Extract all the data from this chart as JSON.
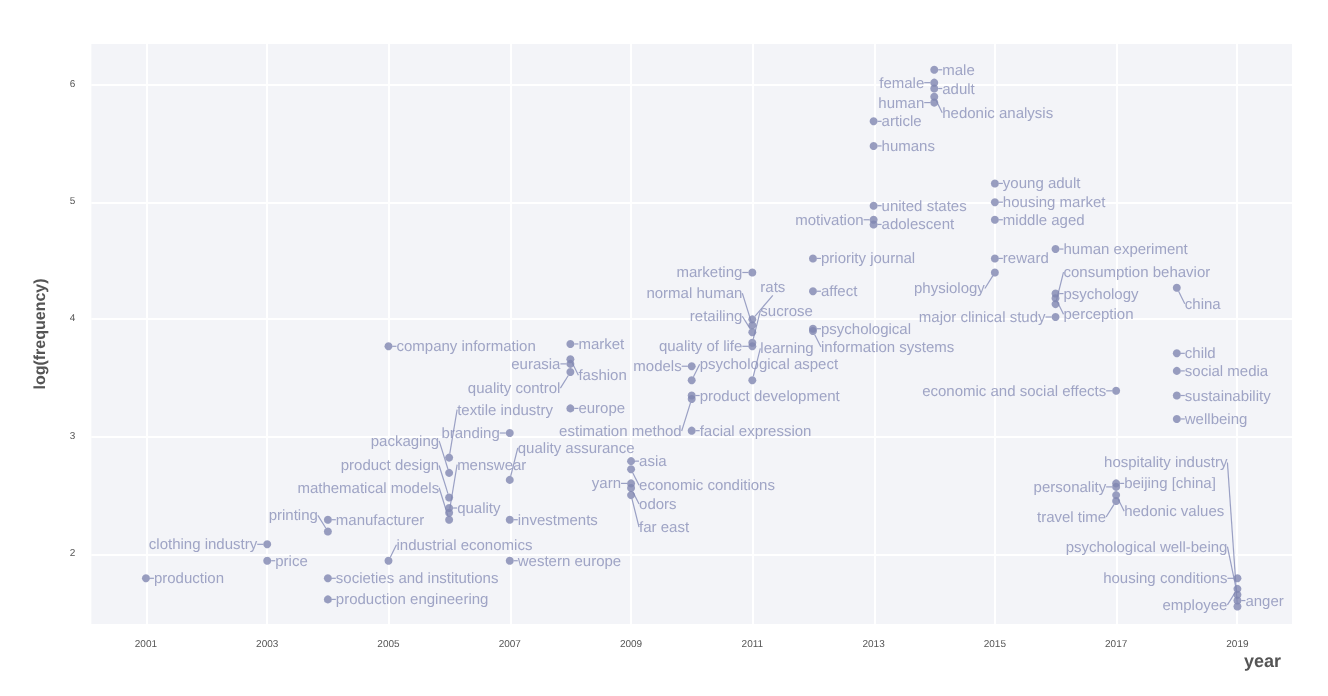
{
  "chart_data": {
    "type": "scatter",
    "xlabel": "year",
    "ylabel": "log(frequency)",
    "xlim": [
      2000.1,
      2019.9
    ],
    "ylim": [
      1.4,
      6.35
    ],
    "xticks": [
      2001,
      2003,
      2005,
      2007,
      2009,
      2011,
      2013,
      2015,
      2017,
      2019
    ],
    "yticks": [
      2,
      3,
      4,
      5,
      6
    ],
    "grid": true,
    "marker": "circle",
    "series": [
      {
        "color": "#7f86b0",
        "x": [
          2001,
          2003,
          2003,
          2004,
          2004,
          2004,
          2004,
          2005,
          2005,
          2006,
          2006,
          2006,
          2006,
          2006,
          2006,
          2007,
          2007,
          2007,
          2007,
          2008,
          2008,
          2008,
          2008,
          2008,
          2010,
          2010,
          2009,
          2009,
          2009,
          2009,
          2009,
          2010,
          2011,
          2010,
          2010,
          2011,
          2011,
          2011,
          2011,
          2011,
          2012,
          2012,
          2012,
          2012,
          2011,
          2013,
          2013,
          2013,
          2013,
          2013,
          2014,
          2014,
          2014,
          2014,
          2014,
          2015,
          2015,
          2015,
          2016,
          2015,
          2015,
          2016,
          2016,
          2016,
          2016,
          2018,
          2018,
          2018,
          2018,
          2018,
          2017,
          2017,
          2017,
          2017,
          2017,
          2019,
          2019,
          2019,
          2019,
          2019
        ],
        "values": [
          1.79,
          1.94,
          2.08,
          1.79,
          1.61,
          2.29,
          2.19,
          1.94,
          3.77,
          2.39,
          2.29,
          2.35,
          2.48,
          2.69,
          2.82,
          2.63,
          2.29,
          1.94,
          3.03,
          3.79,
          3.66,
          3.62,
          3.55,
          3.24,
          3.48,
          3.35,
          2.79,
          2.72,
          2.6,
          2.56,
          2.5,
          3.05,
          3.48,
          3.32,
          3.6,
          3.77,
          3.89,
          3.8,
          3.95,
          4.0,
          3.92,
          3.9,
          4.24,
          4.52,
          4.4,
          4.97,
          4.85,
          4.81,
          5.69,
          5.48,
          6.13,
          6.02,
          5.97,
          5.9,
          5.85,
          5.16,
          5.0,
          4.85,
          4.6,
          4.52,
          4.4,
          4.22,
          4.18,
          4.13,
          4.02,
          4.27,
          3.71,
          3.56,
          3.35,
          3.15,
          3.39,
          2.6,
          2.57,
          2.5,
          2.45,
          1.79,
          1.7,
          1.6,
          1.65,
          1.55
        ]
      }
    ],
    "annotations": [
      {
        "text": "production",
        "x": 2001,
        "y": 1.79
      },
      {
        "text": "price",
        "x": 2003,
        "y": 1.94
      },
      {
        "text": "clothing industry",
        "x": 2003,
        "y": 2.08
      },
      {
        "text": "societies and institutions",
        "x": 2004,
        "y": 1.79
      },
      {
        "text": "production engineering",
        "x": 2004,
        "y": 1.61
      },
      {
        "text": "manufacturer",
        "x": 2004,
        "y": 2.29
      },
      {
        "text": "printing",
        "x": 2004,
        "y": 2.19
      },
      {
        "text": "industrial economics",
        "x": 2005,
        "y": 1.94
      },
      {
        "text": "company information",
        "x": 2005,
        "y": 3.77
      },
      {
        "text": "quality",
        "x": 2006,
        "y": 2.39
      },
      {
        "text": "mathematical models",
        "x": 2006,
        "y": 2.29
      },
      {
        "text": "menswear",
        "x": 2006,
        "y": 2.35
      },
      {
        "text": "product design",
        "x": 2006,
        "y": 2.48
      },
      {
        "text": "packaging",
        "x": 2006,
        "y": 2.69
      },
      {
        "text": "textile industry",
        "x": 2006,
        "y": 2.82
      },
      {
        "text": "quality assurance",
        "x": 2007,
        "y": 2.63
      },
      {
        "text": "investments",
        "x": 2007,
        "y": 2.29
      },
      {
        "text": "western europe",
        "x": 2007,
        "y": 1.94
      },
      {
        "text": "branding",
        "x": 2007,
        "y": 3.03
      },
      {
        "text": "market",
        "x": 2008,
        "y": 3.79
      },
      {
        "text": "fashion",
        "x": 2008,
        "y": 3.66
      },
      {
        "text": "eurasia",
        "x": 2008,
        "y": 3.62
      },
      {
        "text": "quality control",
        "x": 2008,
        "y": 3.55
      },
      {
        "text": "europe",
        "x": 2008,
        "y": 3.24
      },
      {
        "text": "psychological aspect",
        "x": 2010,
        "y": 3.48
      },
      {
        "text": "product development",
        "x": 2010,
        "y": 3.35
      },
      {
        "text": "asia",
        "x": 2009,
        "y": 2.79
      },
      {
        "text": "economic conditions",
        "x": 2009,
        "y": 2.72
      },
      {
        "text": "yarn",
        "x": 2009,
        "y": 2.6
      },
      {
        "text": "odors",
        "x": 2009,
        "y": 2.56
      },
      {
        "text": "far east",
        "x": 2009,
        "y": 2.5
      },
      {
        "text": "facial expression",
        "x": 2010,
        "y": 3.05
      },
      {
        "text": "learning",
        "x": 2011,
        "y": 3.48
      },
      {
        "text": "estimation method",
        "x": 2010,
        "y": 3.32
      },
      {
        "text": "models",
        "x": 2010,
        "y": 3.6
      },
      {
        "text": "quality of life",
        "x": 2011,
        "y": 3.77
      },
      {
        "text": "retailing",
        "x": 2011,
        "y": 3.89
      },
      {
        "text": "sucrose",
        "x": 2011,
        "y": 3.8
      },
      {
        "text": "normal human",
        "x": 2011,
        "y": 3.95
      },
      {
        "text": "rats",
        "x": 2011,
        "y": 4.0
      },
      {
        "text": "psychological",
        "x": 2012,
        "y": 3.92
      },
      {
        "text": "information systems",
        "x": 2012,
        "y": 3.9
      },
      {
        "text": "affect",
        "x": 2012,
        "y": 4.24
      },
      {
        "text": "priority journal",
        "x": 2012,
        "y": 4.52
      },
      {
        "text": "marketing",
        "x": 2011,
        "y": 4.4
      },
      {
        "text": "united states",
        "x": 2013,
        "y": 4.97
      },
      {
        "text": "motivation",
        "x": 2013,
        "y": 4.85
      },
      {
        "text": "adolescent",
        "x": 2013,
        "y": 4.81
      },
      {
        "text": "article",
        "x": 2013,
        "y": 5.69
      },
      {
        "text": "humans",
        "x": 2013,
        "y": 5.48
      },
      {
        "text": "male",
        "x": 2014,
        "y": 6.13
      },
      {
        "text": "female",
        "x": 2014,
        "y": 6.02
      },
      {
        "text": "adult",
        "x": 2014,
        "y": 5.97
      },
      {
        "text": "hedonic analysis",
        "x": 2014,
        "y": 5.9
      },
      {
        "text": "human",
        "x": 2014,
        "y": 5.85
      },
      {
        "text": "young adult",
        "x": 2015,
        "y": 5.16
      },
      {
        "text": "housing market",
        "x": 2015,
        "y": 5.0
      },
      {
        "text": "middle aged",
        "x": 2015,
        "y": 4.85
      },
      {
        "text": "human experiment",
        "x": 2016,
        "y": 4.6
      },
      {
        "text": "reward",
        "x": 2015,
        "y": 4.52
      },
      {
        "text": "physiology",
        "x": 2015,
        "y": 4.4
      },
      {
        "text": "psychology",
        "x": 2016,
        "y": 4.22
      },
      {
        "text": "perception",
        "x": 2016,
        "y": 4.18
      },
      {
        "text": "consumption behavior",
        "x": 2016,
        "y": 4.13
      },
      {
        "text": "major clinical study",
        "x": 2016,
        "y": 4.02
      },
      {
        "text": "china",
        "x": 2018,
        "y": 4.27
      },
      {
        "text": "child",
        "x": 2018,
        "y": 3.71
      },
      {
        "text": "social media",
        "x": 2018,
        "y": 3.56
      },
      {
        "text": "sustainability",
        "x": 2018,
        "y": 3.35
      },
      {
        "text": "wellbeing",
        "x": 2018,
        "y": 3.15
      },
      {
        "text": "economic and social effects",
        "x": 2017,
        "y": 3.39
      },
      {
        "text": "beijing [china]",
        "x": 2017,
        "y": 2.6
      },
      {
        "text": "personality",
        "x": 2017,
        "y": 2.57
      },
      {
        "text": "hedonic values",
        "x": 2017,
        "y": 2.5
      },
      {
        "text": "travel time",
        "x": 2017,
        "y": 2.45
      },
      {
        "text": "housing conditions",
        "x": 2019,
        "y": 1.79
      },
      {
        "text": "employee",
        "x": 2019,
        "y": 1.7
      },
      {
        "text": "anger",
        "x": 2019,
        "y": 1.6
      },
      {
        "text": "psychological well-being",
        "x": 2019,
        "y": 1.65
      },
      {
        "text": "hospitality industry",
        "x": 2019,
        "y": 1.55
      }
    ]
  }
}
